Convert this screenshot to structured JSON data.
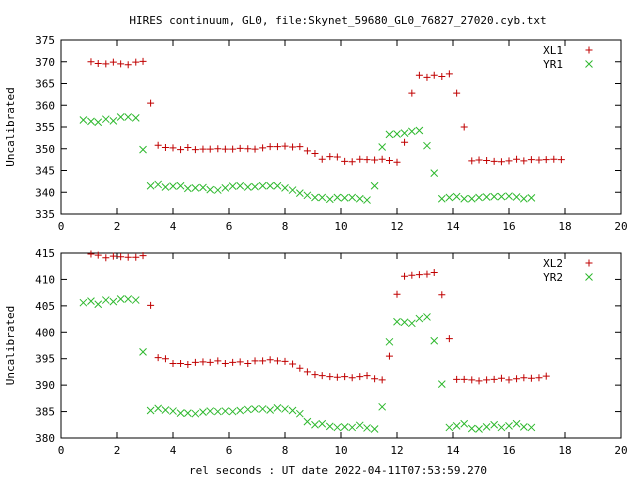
{
  "title": "HIRES continuum, GL0, file:Skynet_59680_GL0_76827_27020.cyb.txt",
  "xlabel": "rel seconds : UT date 2022-04-11T07:53:59.270",
  "colors": {
    "plus": "#c00000",
    "cross": "#2db82d"
  },
  "chart_data": [
    {
      "type": "scatter",
      "ylabel": "Uncalibrated",
      "xlim": [
        0,
        20
      ],
      "ylim": [
        335,
        375
      ],
      "xticks": [
        0,
        2,
        4,
        6,
        8,
        10,
        12,
        14,
        16,
        18,
        20
      ],
      "yticks": [
        335,
        340,
        345,
        350,
        355,
        360,
        365,
        370,
        375
      ],
      "legend": "top-right",
      "x": [
        0.8,
        1.07,
        1.33,
        1.6,
        1.87,
        2.13,
        2.4,
        2.67,
        2.93,
        3.2,
        3.47,
        3.73,
        4.0,
        4.27,
        4.53,
        4.8,
        5.07,
        5.33,
        5.6,
        5.87,
        6.13,
        6.4,
        6.67,
        6.93,
        7.2,
        7.47,
        7.73,
        8.0,
        8.27,
        8.53,
        8.8,
        9.07,
        9.33,
        9.6,
        9.87,
        10.13,
        10.4,
        10.67,
        10.93,
        11.2,
        11.47,
        11.73,
        12.0,
        12.27,
        12.53,
        12.8,
        13.07,
        13.33,
        13.6,
        13.87,
        14.13,
        14.4,
        14.67,
        14.93,
        15.2,
        15.47,
        15.73,
        16.0,
        16.27,
        16.53,
        16.8,
        17.07,
        17.33,
        17.6,
        17.87,
        18.13,
        18.4,
        18.67
      ],
      "series": [
        {
          "name": "XL1",
          "marker": "plus",
          "values": [
            370.0,
            369.6,
            369.5,
            369.9,
            369.5,
            369.3,
            369.9,
            370.1,
            360.5,
            350.8,
            350.3,
            350.2,
            349.8,
            350.3,
            349.8,
            349.9,
            349.9,
            350.0,
            349.9,
            349.9,
            350.1,
            350.0,
            349.9,
            350.2,
            350.5,
            350.5,
            350.6,
            350.4,
            350.5,
            349.5,
            348.9,
            347.6,
            348.2,
            348.1,
            347.1,
            347.0,
            347.6,
            347.5,
            347.4,
            347.6,
            347.3,
            346.9,
            351.5,
            362.8,
            366.9,
            366.4,
            366.9,
            366.6,
            367.2,
            362.8,
            355.0,
            347.2,
            347.4,
            347.3,
            347.1,
            347.0,
            347.2,
            347.6,
            347.2,
            347.5,
            347.4,
            347.5,
            347.6,
            347.5
          ],
          "x_offset": 1
        },
        {
          "name": "YR1",
          "marker": "cross",
          "values": [
            356.6,
            356.3,
            356.1,
            356.8,
            356.4,
            357.3,
            357.3,
            357.1,
            349.8,
            341.5,
            341.8,
            341.2,
            341.4,
            341.5,
            340.9,
            341.0,
            341.1,
            340.6,
            340.5,
            341.0,
            341.4,
            341.5,
            341.2,
            341.3,
            341.5,
            341.5,
            341.5,
            341.0,
            340.5,
            339.8,
            339.3,
            338.8,
            338.8,
            338.4,
            338.8,
            338.7,
            338.8,
            338.5,
            338.2,
            341.5,
            350.4,
            353.3,
            353.4,
            353.6,
            354.0,
            354.2,
            350.7,
            344.4,
            338.5,
            338.8,
            339.0,
            338.5,
            338.5,
            338.8,
            338.9,
            339.0,
            339.0,
            339.1,
            338.9,
            338.5,
            338.7
          ],
          "x_offset": 0
        }
      ]
    },
    {
      "type": "scatter",
      "ylabel": "Uncalibrated",
      "xlim": [
        0,
        20
      ],
      "ylim": [
        380,
        415
      ],
      "xticks": [
        0,
        2,
        4,
        6,
        8,
        10,
        12,
        14,
        16,
        18,
        20
      ],
      "yticks": [
        380,
        385,
        390,
        395,
        400,
        405,
        410,
        415
      ],
      "legend": "top-right",
      "x": [
        0.8,
        1.07,
        1.33,
        1.6,
        1.87,
        2.13,
        2.4,
        2.67,
        2.93,
        3.2,
        3.47,
        3.73,
        4.0,
        4.27,
        4.53,
        4.8,
        5.07,
        5.33,
        5.6,
        5.87,
        6.13,
        6.4,
        6.67,
        6.93,
        7.2,
        7.47,
        7.73,
        8.0,
        8.27,
        8.53,
        8.8,
        9.07,
        9.33,
        9.6,
        9.87,
        10.13,
        10.4,
        10.67,
        10.93,
        11.2,
        11.47,
        11.73,
        12.0,
        12.27,
        12.53,
        12.8,
        13.07,
        13.33,
        13.6,
        13.87,
        14.13,
        14.4,
        14.67,
        14.93,
        15.2,
        15.47,
        15.73,
        16.0,
        16.27,
        16.53,
        16.8,
        17.07,
        17.33,
        17.6,
        17.87,
        18.13,
        18.4,
        18.67
      ],
      "series": [
        {
          "name": "XL2",
          "marker": "plus",
          "values": [
            414.8,
            414.6,
            414.1,
            414.4,
            414.3,
            414.2,
            414.2,
            414.5,
            405.1,
            395.2,
            395.0,
            394.1,
            394.1,
            393.9,
            394.3,
            394.4,
            394.3,
            394.6,
            394.1,
            394.3,
            394.4,
            394.1,
            394.6,
            394.6,
            394.8,
            394.6,
            394.5,
            394.0,
            393.2,
            392.5,
            392.0,
            391.8,
            391.6,
            391.5,
            391.6,
            391.4,
            391.6,
            391.8,
            391.2,
            391.0,
            395.5,
            407.2,
            410.6,
            410.8,
            410.9,
            411.0,
            411.3,
            407.1,
            398.8,
            391.1,
            391.1,
            391.0,
            390.8,
            391.0,
            391.1,
            391.3,
            391.0,
            391.2,
            391.4,
            391.3,
            391.4,
            391.7
          ],
          "x_offset": 1
        },
        {
          "name": "YR2",
          "marker": "cross",
          "values": [
            405.6,
            405.9,
            405.3,
            406.1,
            405.8,
            406.3,
            406.3,
            406.1,
            396.3,
            385.2,
            385.6,
            385.3,
            385.1,
            384.7,
            384.7,
            384.6,
            384.9,
            385.1,
            385.0,
            385.1,
            385.0,
            385.2,
            385.4,
            385.5,
            385.5,
            385.3,
            385.7,
            385.5,
            385.2,
            384.6,
            383.1,
            382.5,
            382.7,
            382.2,
            382.0,
            382.1,
            382.0,
            382.4,
            381.9,
            381.7,
            385.9,
            398.2,
            402.0,
            401.9,
            401.7,
            402.6,
            402.9,
            398.4,
            390.2,
            382.0,
            382.3,
            382.7,
            381.8,
            381.7,
            382.1,
            382.5,
            382.0,
            382.3,
            382.7,
            382.1,
            382.0
          ],
          "x_offset": 0
        }
      ]
    }
  ]
}
